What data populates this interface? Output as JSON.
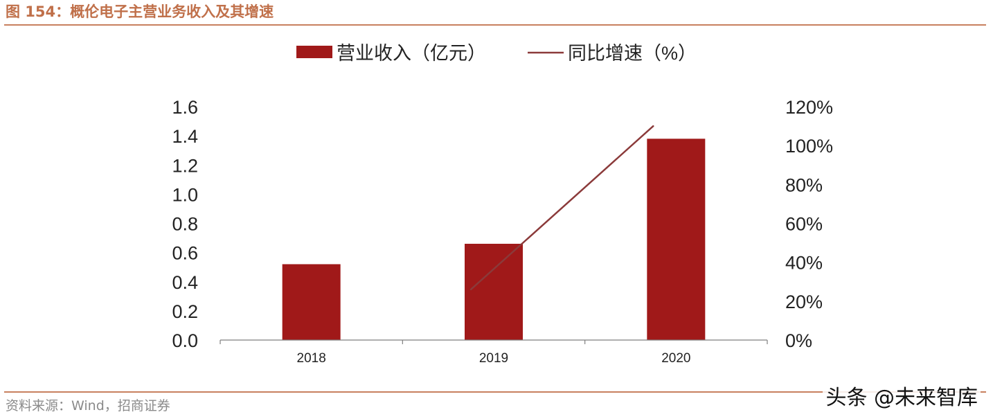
{
  "figure": {
    "title": "图 154：概伦电子主营业务收入及其增速",
    "source": "资料来源：Wind，招商证券",
    "watermark": "头条 @未来智库"
  },
  "colors": {
    "bar": "#a01919",
    "line": "#8b3a3a",
    "axis": "#7f7f7f",
    "header": "#c0704a",
    "rule": "#c8805e"
  },
  "chart_data": {
    "type": "bar+line",
    "categories": [
      "2018",
      "2019",
      "2020"
    ],
    "series": [
      {
        "name": "营业收入（亿元）",
        "type": "bar",
        "axis": "left",
        "values": [
          0.52,
          0.66,
          1.38
        ]
      },
      {
        "name": "同比增速（%）",
        "type": "line",
        "axis": "right",
        "values": [
          null,
          26,
          110
        ]
      }
    ],
    "y_left": {
      "ticks": [
        "0.0",
        "0.2",
        "0.4",
        "0.6",
        "0.8",
        "1.0",
        "1.2",
        "1.4",
        "1.6"
      ],
      "range": [
        0,
        1.6
      ]
    },
    "y_right": {
      "ticks": [
        "0%",
        "20%",
        "40%",
        "60%",
        "80%",
        "100%",
        "120%"
      ],
      "range": [
        0,
        120
      ]
    },
    "grid": false,
    "legend": "top-center"
  }
}
